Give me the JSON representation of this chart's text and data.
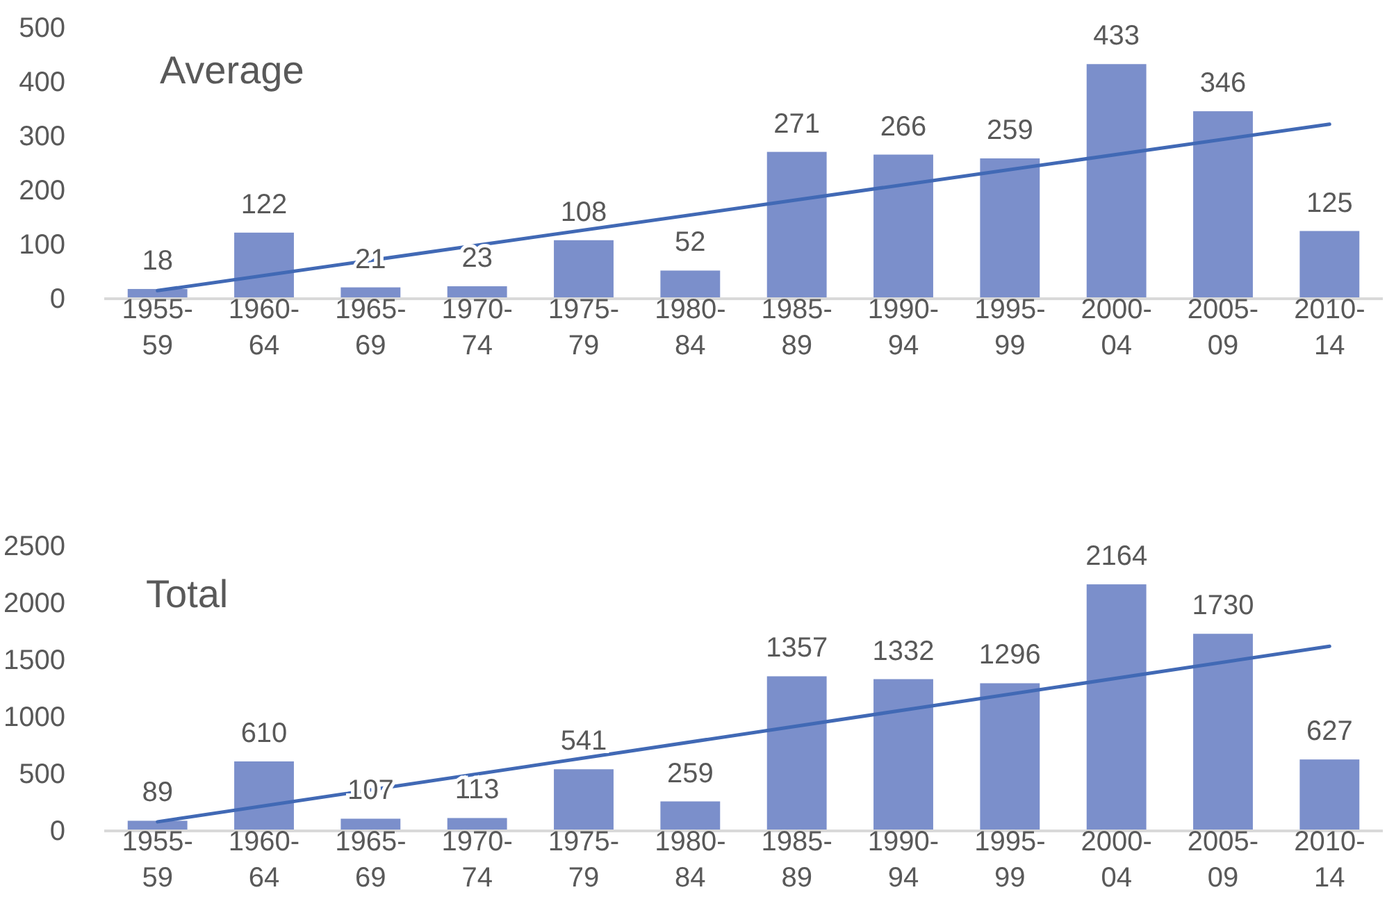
{
  "chart_data": [
    {
      "type": "bar",
      "title": "Average",
      "categories": [
        "1955-59",
        "1960-64",
        "1965-69",
        "1970-74",
        "1975-79",
        "1980-84",
        "1985-89",
        "1990-94",
        "1995-99",
        "2000-04",
        "2005-09",
        "2010-14"
      ],
      "series": [
        {
          "color": "#7b8fcb",
          "values": [
            18,
            122,
            21,
            23,
            108,
            52,
            271,
            266,
            259,
            433,
            346,
            125
          ],
          "value_labels": [
            "18",
            "122",
            "21",
            "23",
            "108",
            "52",
            "271",
            "266",
            "259",
            "433",
            "346",
            "125"
          ]
        },
        {
          "type": "line",
          "color": "#4169b5",
          "x": [
            "1955-59",
            "2010-14"
          ],
          "values": [
            15,
            322
          ]
        }
      ],
      "ylim": [
        0,
        500
      ],
      "yticks": [
        0,
        100,
        200,
        300,
        400,
        500
      ]
    },
    {
      "type": "bar",
      "title": "Total",
      "categories": [
        "1955-59",
        "1960-64",
        "1965-69",
        "1970-74",
        "1975-79",
        "1980-84",
        "1985-89",
        "1990-94",
        "1995-99",
        "2000-04",
        "2005-09",
        "2010-14"
      ],
      "series": [
        {
          "color": "#7b8fcb",
          "values": [
            89,
            610,
            107,
            113,
            541,
            259,
            1357,
            1332,
            1296,
            2164,
            1730,
            627
          ],
          "value_labels": [
            "89",
            "610",
            "107",
            "113",
            "541",
            "259",
            "1357",
            "1332",
            "1296",
            "2164",
            "1730",
            "627"
          ]
        },
        {
          "type": "line",
          "color": "#4169b5",
          "x": [
            "1955-59",
            "2010-14"
          ],
          "values": [
            80,
            1620
          ]
        }
      ],
      "ylim": [
        0,
        2500
      ],
      "yticks": [
        0,
        500,
        1000,
        1500,
        2000,
        2500
      ]
    }
  ]
}
